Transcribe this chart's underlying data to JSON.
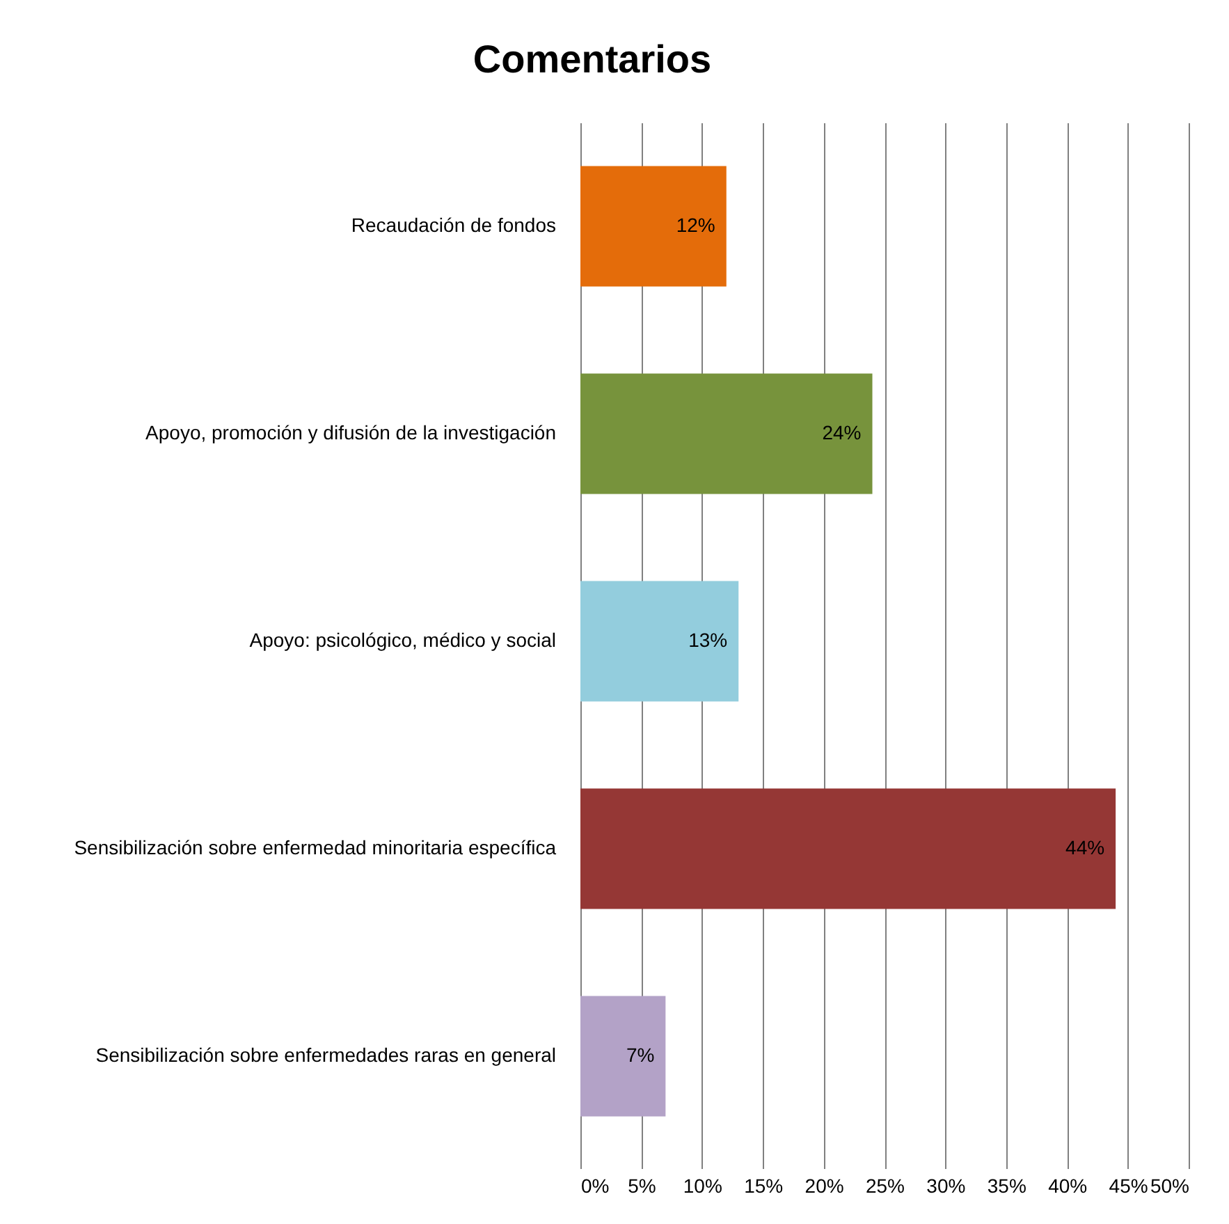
{
  "chart_data": {
    "type": "bar",
    "orientation": "horizontal",
    "title": "Comentarios",
    "categories": [
      "Recaudación de fondos",
      "Apoyo, promoción y difusión de la investigación",
      "Apoyo: psicológico, médico y social",
      "Sensibilización sobre enfermedad minoritaria específica",
      "Sensibilización sobre enfermedades raras en general"
    ],
    "values": [
      12,
      24,
      13,
      44,
      7
    ],
    "colors": [
      "#e46c0a",
      "#77933c",
      "#93cddd",
      "#953735",
      "#b3a2c7"
    ],
    "value_labels": [
      "12%",
      "24%",
      "13%",
      "44%",
      "7%"
    ],
    "xlim": [
      0,
      50
    ],
    "xticks": [
      {
        "value": 0,
        "label": "0%"
      },
      {
        "value": 5,
        "label": "5%"
      },
      {
        "value": 10,
        "label": "10%"
      },
      {
        "value": 15,
        "label": "15%"
      },
      {
        "value": 20,
        "label": "20%"
      },
      {
        "value": 25,
        "label": "25%"
      },
      {
        "value": 30,
        "label": "30%"
      },
      {
        "value": 35,
        "label": "35%"
      },
      {
        "value": 40,
        "label": "40%"
      },
      {
        "value": 45,
        "label": "45%"
      },
      {
        "value": 50,
        "label": "50%"
      }
    ],
    "grid": "x",
    "legend": false
  }
}
